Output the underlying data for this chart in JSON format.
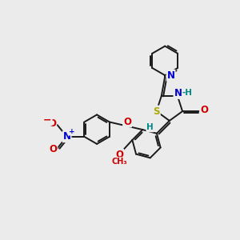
{
  "bg_color": "#ebebeb",
  "bond_color": "#1a1a1a",
  "bond_width": 1.4,
  "S_color": "#aaaa00",
  "N_color": "#0000cc",
  "O_color": "#cc0000",
  "H_color": "#008888",
  "figsize": [
    3.0,
    3.0
  ],
  "dpi": 100,
  "xlim": [
    0,
    10
  ],
  "ylim": [
    0,
    10
  ]
}
